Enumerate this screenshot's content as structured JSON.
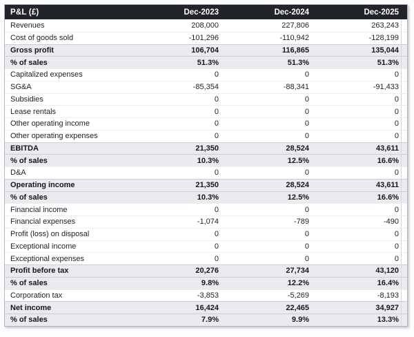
{
  "chart_data": {
    "type": "table",
    "title": "P&L (£)",
    "columns": [
      "Dec-2023",
      "Dec-2024",
      "Dec-2025"
    ],
    "layout": {
      "header_bg": "#21252a",
      "header_text": "#ffffff",
      "band_row_bg": "#e9ebf0",
      "band_rows_are_bold": true,
      "numeric_alignment": "right"
    },
    "rows": [
      {
        "label": "Revenues",
        "format": "int",
        "band": false,
        "values": [
          208000,
          227806,
          263243
        ]
      },
      {
        "label": "Cost of goods sold",
        "format": "int",
        "band": false,
        "values": [
          -101296,
          -110942,
          -128199
        ]
      },
      {
        "label": "Gross profit",
        "format": "int",
        "band": true,
        "values": [
          106704,
          116865,
          135044
        ]
      },
      {
        "label": "% of sales",
        "format": "pct",
        "band": true,
        "values": [
          51.3,
          51.3,
          51.3
        ]
      },
      {
        "label": "Capitalized expenses",
        "format": "int",
        "band": false,
        "values": [
          0,
          0,
          0
        ]
      },
      {
        "label": "SG&A",
        "format": "int",
        "band": false,
        "values": [
          -85354,
          -88341,
          -91433
        ]
      },
      {
        "label": "Subsidies",
        "format": "int",
        "band": false,
        "values": [
          0,
          0,
          0
        ]
      },
      {
        "label": "Lease rentals",
        "format": "int",
        "band": false,
        "values": [
          0,
          0,
          0
        ]
      },
      {
        "label": "Other operating income",
        "format": "int",
        "band": false,
        "values": [
          0,
          0,
          0
        ]
      },
      {
        "label": "Other operating expenses",
        "format": "int",
        "band": false,
        "values": [
          0,
          0,
          0
        ]
      },
      {
        "label": "EBITDA",
        "format": "int",
        "band": true,
        "values": [
          21350,
          28524,
          43611
        ]
      },
      {
        "label": "% of sales",
        "format": "pct",
        "band": true,
        "values": [
          10.3,
          12.5,
          16.6
        ]
      },
      {
        "label": "D&A",
        "format": "int",
        "band": false,
        "values": [
          0,
          0,
          0
        ]
      },
      {
        "label": "Operating income",
        "format": "int",
        "band": true,
        "values": [
          21350,
          28524,
          43611
        ]
      },
      {
        "label": "% of sales",
        "format": "pct",
        "band": true,
        "values": [
          10.3,
          12.5,
          16.6
        ]
      },
      {
        "label": "Financial income",
        "format": "int",
        "band": false,
        "values": [
          0,
          0,
          0
        ]
      },
      {
        "label": "Financial expenses",
        "format": "int",
        "band": false,
        "values": [
          -1074,
          -789,
          -490
        ]
      },
      {
        "label": "Profit (loss) on disposal",
        "format": "int",
        "band": false,
        "values": [
          0,
          0,
          0
        ]
      },
      {
        "label": "Exceptional income",
        "format": "int",
        "band": false,
        "values": [
          0,
          0,
          0
        ]
      },
      {
        "label": "Exceptional expenses",
        "format": "int",
        "band": false,
        "values": [
          0,
          0,
          0
        ]
      },
      {
        "label": "Profit before tax",
        "format": "int",
        "band": true,
        "values": [
          20276,
          27734,
          43120
        ]
      },
      {
        "label": "% of sales",
        "format": "pct",
        "band": true,
        "values": [
          9.8,
          12.2,
          16.4
        ]
      },
      {
        "label": "Corporation tax",
        "format": "int",
        "band": false,
        "values": [
          -3853,
          -5269,
          -8193
        ]
      },
      {
        "label": "Net income",
        "format": "int",
        "band": true,
        "values": [
          16424,
          22465,
          34927
        ]
      },
      {
        "label": "% of sales",
        "format": "pct",
        "band": true,
        "values": [
          7.9,
          9.9,
          13.3
        ]
      }
    ]
  }
}
